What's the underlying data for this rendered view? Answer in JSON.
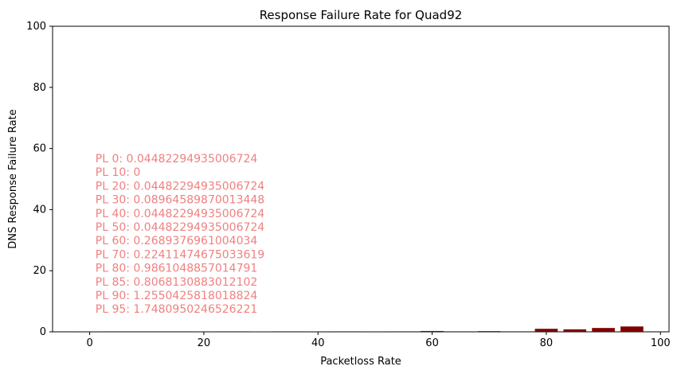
{
  "chart_data": {
    "type": "bar",
    "title": "Response Failure Rate for Quad92",
    "xlabel": "Packetloss Rate",
    "ylabel": "DNS Response Failure Rate",
    "xlim": [
      -6.5,
      101.5
    ],
    "ylim": [
      0,
      100
    ],
    "grid": false,
    "x_ticks": [
      "0",
      "20",
      "40",
      "60",
      "80",
      "100"
    ],
    "y_ticks": [
      "0",
      "20",
      "40",
      "60",
      "80",
      "100"
    ],
    "bar_color": "#800000",
    "annotation_color": "#f08080",
    "categories": [
      0,
      10,
      20,
      30,
      40,
      50,
      60,
      70,
      80,
      85,
      90,
      95
    ],
    "values": [
      0.04482294935006724,
      0,
      0.04482294935006724,
      0.08964589870013448,
      0.04482294935006724,
      0.04482294935006724,
      0.2689376961004034,
      0.22411474675033619,
      0.9861048857014791,
      0.8068130883012102,
      1.2550425818018824,
      1.7480950246526221
    ],
    "annotations": [
      "PL 0: 0.04482294935006724",
      "PL 10: 0",
      "PL 20: 0.04482294935006724",
      "PL 30: 0.08964589870013448",
      "PL 40: 0.04482294935006724",
      "PL 50: 0.04482294935006724",
      "PL 60: 0.2689376961004034",
      "PL 70: 0.22411474675033619",
      "PL 80: 0.9861048857014791",
      "PL 85: 0.8068130883012102",
      "PL 90: 1.2550425818018824",
      "PL 95: 1.7480950246526221"
    ]
  }
}
